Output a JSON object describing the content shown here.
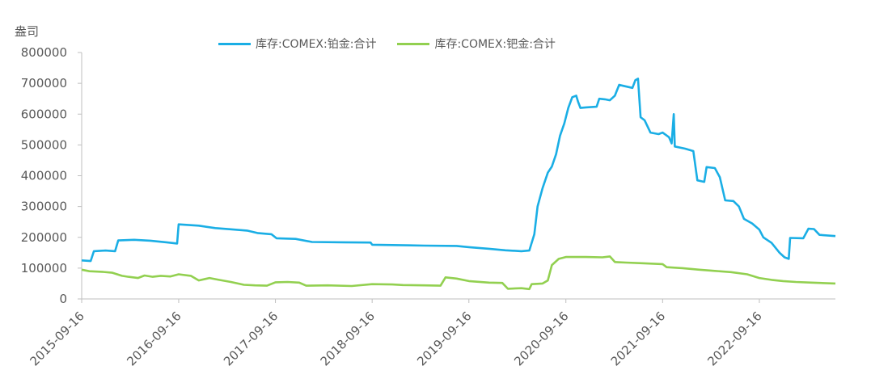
{
  "chart_data": {
    "type": "line",
    "unit_label": "盎司",
    "ylim": [
      0,
      800000
    ],
    "y_ticks": [
      0,
      100000,
      200000,
      300000,
      400000,
      500000,
      600000,
      700000,
      800000
    ],
    "x_ticks": [
      "2015-09-16",
      "2016-09-16",
      "2017-09-16",
      "2018-09-16",
      "2019-09-16",
      "2020-09-16",
      "2021-09-16",
      "2022-09-16"
    ],
    "xlim": [
      "2015-09-16",
      "2023-06-30"
    ],
    "legend_position": "top-center",
    "grid": false,
    "series": [
      {
        "name": "库存:COMEX:铂金:合计",
        "color": "#1aaee5",
        "points": [
          [
            "2015-09-16",
            125000
          ],
          [
            "2015-10-20",
            123000
          ],
          [
            "2015-11-01",
            155000
          ],
          [
            "2015-12-15",
            157000
          ],
          [
            "2016-01-20",
            155000
          ],
          [
            "2016-02-01",
            190000
          ],
          [
            "2016-04-01",
            192000
          ],
          [
            "2016-06-01",
            189000
          ],
          [
            "2016-08-01",
            184000
          ],
          [
            "2016-09-10",
            180000
          ],
          [
            "2016-09-16",
            242000
          ],
          [
            "2016-12-01",
            238000
          ],
          [
            "2017-02-01",
            230000
          ],
          [
            "2017-04-01",
            226000
          ],
          [
            "2017-06-01",
            222000
          ],
          [
            "2017-07-10",
            214000
          ],
          [
            "2017-09-01",
            210000
          ],
          [
            "2017-09-20",
            197000
          ],
          [
            "2017-12-01",
            195000
          ],
          [
            "2018-02-01",
            185000
          ],
          [
            "2018-06-01",
            184000
          ],
          [
            "2018-09-10",
            183000
          ],
          [
            "2018-09-16",
            176000
          ],
          [
            "2018-12-01",
            175000
          ],
          [
            "2019-04-01",
            173000
          ],
          [
            "2019-08-01",
            172000
          ],
          [
            "2019-09-16",
            168000
          ],
          [
            "2019-12-01",
            163000
          ],
          [
            "2020-02-01",
            158000
          ],
          [
            "2020-04-01",
            155000
          ],
          [
            "2020-05-01",
            157000
          ],
          [
            "2020-05-20",
            210000
          ],
          [
            "2020-06-01",
            300000
          ],
          [
            "2020-06-20",
            360000
          ],
          [
            "2020-07-10",
            410000
          ],
          [
            "2020-07-25",
            430000
          ],
          [
            "2020-08-10",
            470000
          ],
          [
            "2020-08-25",
            530000
          ],
          [
            "2020-09-10",
            570000
          ],
          [
            "2020-09-25",
            620000
          ],
          [
            "2020-10-10",
            655000
          ],
          [
            "2020-10-25",
            660000
          ],
          [
            "2020-11-01",
            640000
          ],
          [
            "2020-11-10",
            620000
          ],
          [
            "2020-12-01",
            622000
          ],
          [
            "2021-01-10",
            624000
          ],
          [
            "2021-01-20",
            650000
          ],
          [
            "2021-02-10",
            648000
          ],
          [
            "2021-03-01",
            645000
          ],
          [
            "2021-03-20",
            660000
          ],
          [
            "2021-04-05",
            695000
          ],
          [
            "2021-04-20",
            692000
          ],
          [
            "2021-05-10",
            688000
          ],
          [
            "2021-05-25",
            685000
          ],
          [
            "2021-06-05",
            710000
          ],
          [
            "2021-06-15",
            715000
          ],
          [
            "2021-06-25",
            590000
          ],
          [
            "2021-07-10",
            580000
          ],
          [
            "2021-08-01",
            540000
          ],
          [
            "2021-09-01",
            535000
          ],
          [
            "2021-09-16",
            540000
          ],
          [
            "2021-10-10",
            525000
          ],
          [
            "2021-10-20",
            505000
          ],
          [
            "2021-10-28",
            600000
          ],
          [
            "2021-11-01",
            495000
          ],
          [
            "2021-12-10",
            488000
          ],
          [
            "2022-01-10",
            480000
          ],
          [
            "2022-01-25",
            385000
          ],
          [
            "2022-02-20",
            380000
          ],
          [
            "2022-03-01",
            428000
          ],
          [
            "2022-04-01",
            425000
          ],
          [
            "2022-04-20",
            395000
          ],
          [
            "2022-05-10",
            320000
          ],
          [
            "2022-06-10",
            318000
          ],
          [
            "2022-07-01",
            300000
          ],
          [
            "2022-07-20",
            260000
          ],
          [
            "2022-08-20",
            245000
          ],
          [
            "2022-09-16",
            225000
          ],
          [
            "2022-10-01",
            200000
          ],
          [
            "2022-11-01",
            182000
          ],
          [
            "2022-12-01",
            150000
          ],
          [
            "2022-12-20",
            135000
          ],
          [
            "2023-01-05",
            130000
          ],
          [
            "2023-01-10",
            198000
          ],
          [
            "2023-03-01",
            197000
          ],
          [
            "2023-03-20",
            228000
          ],
          [
            "2023-04-10",
            227000
          ],
          [
            "2023-05-01",
            208000
          ],
          [
            "2023-06-30",
            204000
          ]
        ]
      },
      {
        "name": "库存:COMEX:钯金:合计",
        "color": "#92d050",
        "points": [
          [
            "2015-09-16",
            95000
          ],
          [
            "2015-10-15",
            90000
          ],
          [
            "2015-12-01",
            88000
          ],
          [
            "2016-01-10",
            85000
          ],
          [
            "2016-02-15",
            75000
          ],
          [
            "2016-03-10",
            72000
          ],
          [
            "2016-04-15",
            68000
          ],
          [
            "2016-05-10",
            76000
          ],
          [
            "2016-06-10",
            72000
          ],
          [
            "2016-07-10",
            75000
          ],
          [
            "2016-08-15",
            73000
          ],
          [
            "2016-09-16",
            80000
          ],
          [
            "2016-11-01",
            75000
          ],
          [
            "2016-12-01",
            60000
          ],
          [
            "2017-01-10",
            68000
          ],
          [
            "2017-02-15",
            62000
          ],
          [
            "2017-04-01",
            55000
          ],
          [
            "2017-05-20",
            46000
          ],
          [
            "2017-07-01",
            44000
          ],
          [
            "2017-08-15",
            43000
          ],
          [
            "2017-09-16",
            54000
          ],
          [
            "2017-11-01",
            55000
          ],
          [
            "2017-12-15",
            53000
          ],
          [
            "2018-01-10",
            43000
          ],
          [
            "2018-04-01",
            44000
          ],
          [
            "2018-07-01",
            42000
          ],
          [
            "2018-09-16",
            48000
          ],
          [
            "2018-12-01",
            47000
          ],
          [
            "2019-01-10",
            45000
          ],
          [
            "2019-04-01",
            44000
          ],
          [
            "2019-06-01",
            43000
          ],
          [
            "2019-06-20",
            70000
          ],
          [
            "2019-08-01",
            66000
          ],
          [
            "2019-09-16",
            58000
          ],
          [
            "2019-12-01",
            53000
          ],
          [
            "2020-01-20",
            52000
          ],
          [
            "2020-02-10",
            33000
          ],
          [
            "2020-04-01",
            35000
          ],
          [
            "2020-05-01",
            32000
          ],
          [
            "2020-05-10",
            48000
          ],
          [
            "2020-06-20",
            50000
          ],
          [
            "2020-07-10",
            60000
          ],
          [
            "2020-07-25",
            110000
          ],
          [
            "2020-08-20",
            130000
          ],
          [
            "2020-09-16",
            136000
          ],
          [
            "2020-12-01",
            136000
          ],
          [
            "2021-02-01",
            135000
          ],
          [
            "2021-03-01",
            138000
          ],
          [
            "2021-03-20",
            120000
          ],
          [
            "2021-05-01",
            118000
          ],
          [
            "2021-07-01",
            116000
          ],
          [
            "2021-09-16",
            113000
          ],
          [
            "2021-10-01",
            103000
          ],
          [
            "2021-12-01",
            100000
          ],
          [
            "2022-02-01",
            95000
          ],
          [
            "2022-04-01",
            91000
          ],
          [
            "2022-06-01",
            87000
          ],
          [
            "2022-08-01",
            80000
          ],
          [
            "2022-09-16",
            68000
          ],
          [
            "2022-11-01",
            62000
          ],
          [
            "2022-12-15",
            58000
          ],
          [
            "2023-02-01",
            55000
          ],
          [
            "2023-04-01",
            53000
          ],
          [
            "2023-06-30",
            50000
          ]
        ]
      }
    ]
  }
}
